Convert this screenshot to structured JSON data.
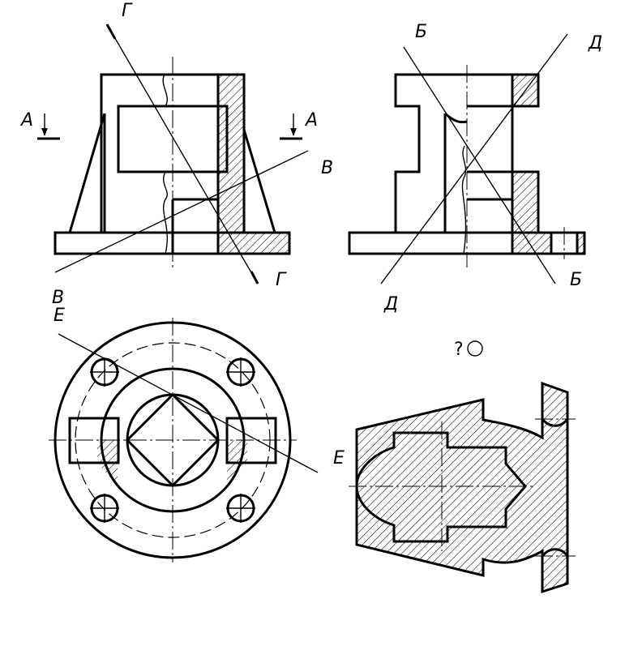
{
  "labels": {
    "section_A": "А",
    "section_B": "Б",
    "section_V": "В",
    "section_G": "Г",
    "section_D": "Д",
    "section_E": "Е"
  },
  "task_mark": "?",
  "colors": {
    "line": "#000000",
    "background": "#ffffff"
  }
}
